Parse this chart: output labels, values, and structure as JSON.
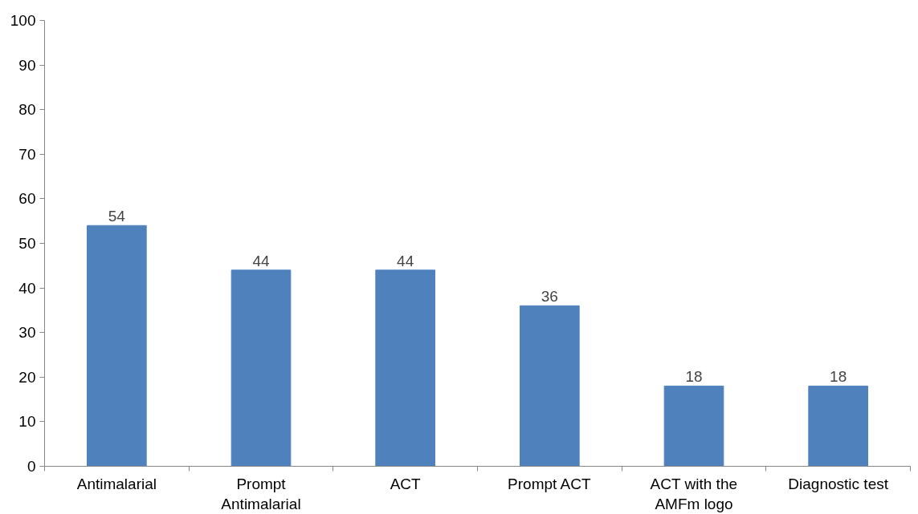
{
  "chart_data": {
    "type": "bar",
    "categories": [
      "Antimalarial",
      "Prompt Antimalarial",
      "ACT",
      "Prompt ACT",
      "ACT with the AMFm logo",
      "Diagnostic test"
    ],
    "values": [
      54,
      44,
      44,
      36,
      18,
      18
    ],
    "color": "#4f81bd",
    "ylim": [
      0,
      100
    ],
    "yticks": [
      0,
      10,
      20,
      30,
      40,
      50,
      60,
      70,
      80,
      90,
      100
    ],
    "data_labels": true
  }
}
